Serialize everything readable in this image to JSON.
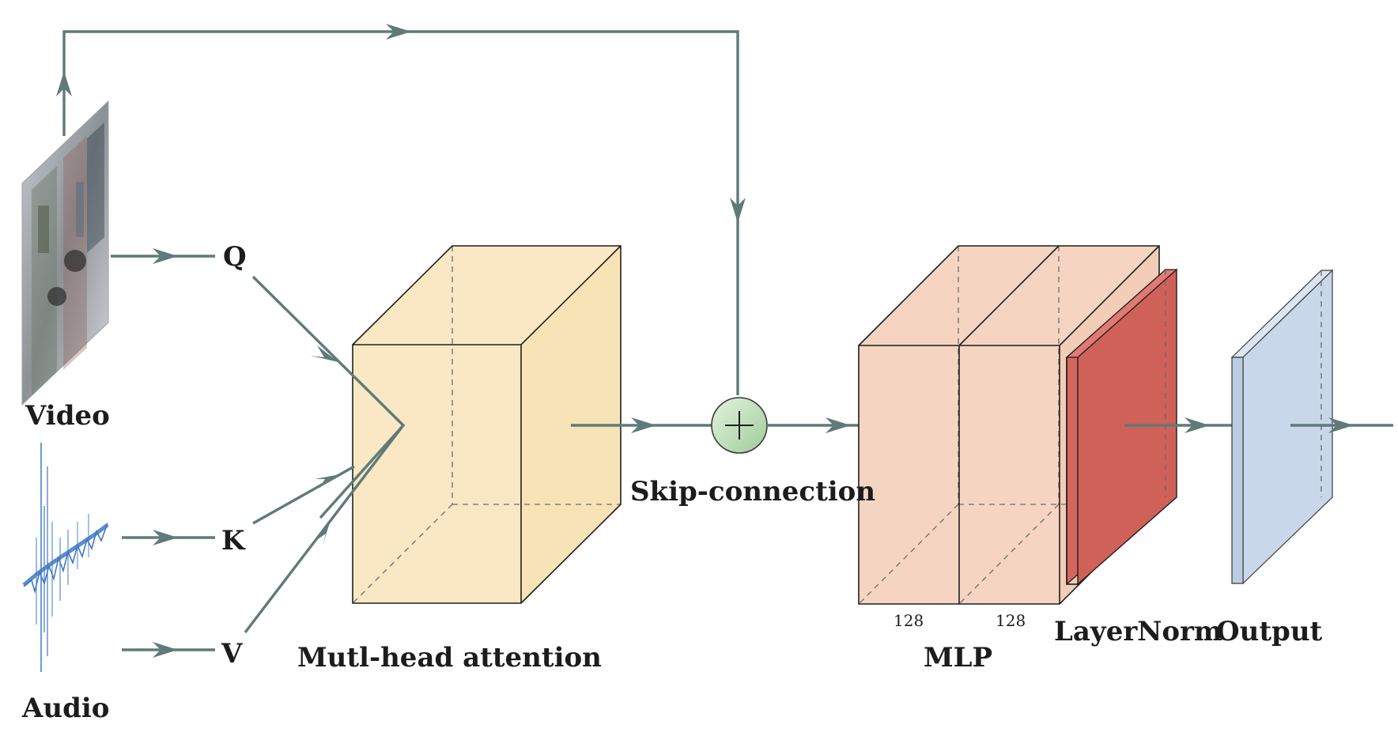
{
  "labels": {
    "video": "Video",
    "audio": "Audio",
    "q": "Q",
    "k": "K",
    "v": "V",
    "attention": "Mutl-head attention",
    "skip": "Skip-connection",
    "mlp": "MLP",
    "mlp_dim_1": "128",
    "mlp_dim_2": "128",
    "layernorm": "LayerNorm",
    "output": "Output"
  },
  "colors": {
    "arrow": "#5f7a79",
    "attention_block": "#f9e8c3",
    "mlp_block": "#f5d5c2",
    "layernorm_block": "#d4665e",
    "output_block": "#c8d7ea",
    "skip_circle": "#b9dab5"
  },
  "icons": {
    "video": "video-frame-image",
    "audio": "audio-waveform",
    "sum": "plus-circle-icon"
  }
}
